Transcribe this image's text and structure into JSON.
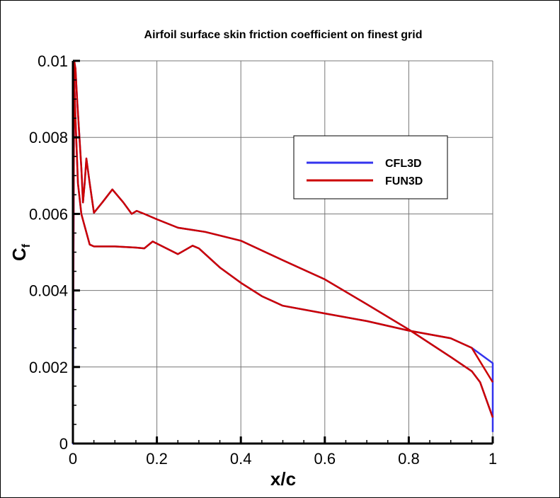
{
  "chart_data": {
    "type": "line",
    "title": "Airfoil surface skin friction coefficient on finest grid",
    "xlabel": "x/c",
    "ylabel": "C",
    "ylabel_subscript": "f",
    "xlim": [
      0,
      1
    ],
    "ylim": [
      0,
      0.01
    ],
    "xticks": [
      "0",
      "0.2",
      "0.4",
      "0.6",
      "0.8",
      "1"
    ],
    "yticks": [
      "0",
      "0.002",
      "0.004",
      "0.006",
      "0.008",
      "0.01"
    ],
    "grid": true,
    "legend_placement": "top-right",
    "series": [
      {
        "name": "CFL3D",
        "color": "#3333ee",
        "x": [
          1.0,
          1.0,
          0.95,
          0.9,
          0.8,
          0.7,
          0.6,
          0.5,
          0.45,
          0.4,
          0.35,
          0.3,
          0.285,
          0.25,
          0.19,
          0.17,
          0.15,
          0.1,
          0.05,
          0.04,
          0.025,
          0.02,
          0.012,
          0.006,
          0.003,
          0.0,
          0.0,
          0.003,
          0.006,
          0.01,
          0.015,
          0.02,
          0.024,
          0.028,
          0.032,
          0.04,
          0.05,
          0.07,
          0.094,
          0.12,
          0.14,
          0.152,
          0.17,
          0.2,
          0.25,
          0.315,
          0.4,
          0.5,
          0.6,
          0.7,
          0.8,
          0.9,
          0.95,
          0.97,
          1.0,
          1.0
        ],
        "y": [
          0.0003,
          0.0021,
          0.0025,
          0.00275,
          0.00295,
          0.0032,
          0.0034,
          0.0036,
          0.00385,
          0.0042,
          0.0046,
          0.0051,
          0.00517,
          0.00495,
          0.00528,
          0.0051,
          0.00512,
          0.00515,
          0.00515,
          0.0052,
          0.0058,
          0.006,
          0.0068,
          0.0085,
          0.0095,
          0.006,
          0.0,
          0.01,
          0.0098,
          0.009,
          0.0081,
          0.0072,
          0.0063,
          0.0068,
          0.00745,
          0.0068,
          0.00603,
          0.0063,
          0.00664,
          0.0063,
          0.006,
          0.00608,
          0.006,
          0.00586,
          0.00564,
          0.00553,
          0.0053,
          0.00479,
          0.00429,
          0.00364,
          0.00298,
          0.00226,
          0.00189,
          0.0016,
          0.00068,
          0.0003
        ]
      },
      {
        "name": "FUN3D",
        "color": "#cc0000",
        "x": [
          1.0,
          0.95,
          0.9,
          0.8,
          0.7,
          0.6,
          0.5,
          0.45,
          0.4,
          0.35,
          0.3,
          0.285,
          0.25,
          0.19,
          0.17,
          0.15,
          0.1,
          0.05,
          0.04,
          0.025,
          0.02,
          0.012,
          0.006,
          0.003,
          0.0,
          0.0,
          0.003,
          0.006,
          0.01,
          0.015,
          0.02,
          0.024,
          0.028,
          0.032,
          0.04,
          0.05,
          0.07,
          0.094,
          0.12,
          0.14,
          0.152,
          0.17,
          0.2,
          0.25,
          0.315,
          0.4,
          0.5,
          0.6,
          0.7,
          0.8,
          0.9,
          0.95,
          0.97,
          1.0
        ],
        "y": [
          0.0016,
          0.0025,
          0.00275,
          0.00295,
          0.0032,
          0.0034,
          0.0036,
          0.00385,
          0.0042,
          0.0046,
          0.0051,
          0.00517,
          0.00495,
          0.00528,
          0.0051,
          0.00512,
          0.00515,
          0.00515,
          0.0052,
          0.0058,
          0.006,
          0.0068,
          0.0085,
          0.0095,
          0.006,
          0.0014,
          0.01,
          0.0098,
          0.009,
          0.0081,
          0.0072,
          0.0063,
          0.0068,
          0.00745,
          0.0068,
          0.00603,
          0.0063,
          0.00664,
          0.0063,
          0.006,
          0.00608,
          0.006,
          0.00586,
          0.00564,
          0.00553,
          0.0053,
          0.00479,
          0.00429,
          0.00364,
          0.00298,
          0.00226,
          0.00189,
          0.0016,
          0.00068
        ]
      }
    ]
  }
}
